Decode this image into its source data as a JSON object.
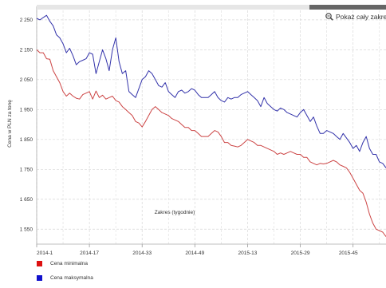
{
  "ui": {
    "zoom_button_label": "Pokaż cały zakres",
    "zoom_icon": "magnifier-minus-icon"
  },
  "chart_data": {
    "type": "line",
    "ylabel": "Cena w PLN za tonę",
    "xlabel": "Zakres (tygodnie)",
    "x_tick_labels": [
      "2014-1",
      "2014-17",
      "2014-33",
      "2014-49",
      "2015-13",
      "2015-29",
      "2015-45"
    ],
    "y_ticks": [
      1550,
      1650,
      1750,
      1850,
      1950,
      2050,
      2150,
      2250
    ],
    "y_tick_labels": [
      "1 550",
      "1 650",
      "1 750",
      "1 850",
      "1 950",
      "2 050",
      "2 150",
      "2 250"
    ],
    "ylim": [
      1500,
      2295
    ],
    "grid": true,
    "legend_position": "bottom-left",
    "series": [
      {
        "name": "Cena minimalna",
        "color": "#dd3333",
        "values": [
          2150,
          2140,
          2140,
          2120,
          2118,
          2080,
          2060,
          2040,
          2010,
          1995,
          2005,
          1995,
          1988,
          1985,
          2000,
          2005,
          2010,
          1985,
          2012,
          1990,
          1998,
          1985,
          1990,
          1995,
          1980,
          1975,
          1960,
          1950,
          1940,
          1930,
          1910,
          1905,
          1892,
          1910,
          1930,
          1950,
          1960,
          1950,
          1940,
          1935,
          1930,
          1920,
          1915,
          1910,
          1900,
          1890,
          1890,
          1880,
          1880,
          1870,
          1860,
          1860,
          1860,
          1870,
          1880,
          1875,
          1860,
          1840,
          1840,
          1830,
          1828,
          1825,
          1830,
          1840,
          1850,
          1845,
          1840,
          1830,
          1830,
          1825,
          1820,
          1815,
          1810,
          1800,
          1805,
          1800,
          1805,
          1810,
          1805,
          1800,
          1800,
          1790,
          1790,
          1775,
          1770,
          1765,
          1770,
          1768,
          1770,
          1775,
          1780,
          1775,
          1765,
          1760,
          1755,
          1740,
          1720,
          1700,
          1680,
          1670,
          1640,
          1600,
          1570,
          1550,
          1545,
          1540,
          1525
        ]
      },
      {
        "name": "Cena maksymalna",
        "color": "#2222bb",
        "values": [
          2255,
          2250,
          2258,
          2265,
          2245,
          2230,
          2200,
          2190,
          2170,
          2140,
          2155,
          2130,
          2100,
          2110,
          2115,
          2120,
          2140,
          2135,
          2070,
          2110,
          2150,
          2120,
          2080,
          2150,
          2190,
          2110,
          2070,
          2080,
          2010,
          2000,
          1990,
          2020,
          2050,
          2060,
          2080,
          2070,
          2050,
          2030,
          2025,
          2040,
          2010,
          2000,
          1990,
          2010,
          2015,
          2005,
          2010,
          2020,
          2015,
          2000,
          1990,
          1990,
          1990,
          2000,
          2010,
          1990,
          1980,
          1975,
          1990,
          1985,
          1990,
          1990,
          2000,
          2005,
          2010,
          2000,
          1990,
          1980,
          1960,
          1990,
          1970,
          1960,
          1950,
          1945,
          1955,
          1950,
          1940,
          1935,
          1930,
          1925,
          1940,
          1950,
          1930,
          1910,
          1925,
          1895,
          1870,
          1870,
          1880,
          1875,
          1870,
          1860,
          1850,
          1870,
          1855,
          1840,
          1820,
          1830,
          1810,
          1840,
          1860,
          1820,
          1800,
          1800,
          1775,
          1770,
          1755
        ]
      }
    ]
  }
}
